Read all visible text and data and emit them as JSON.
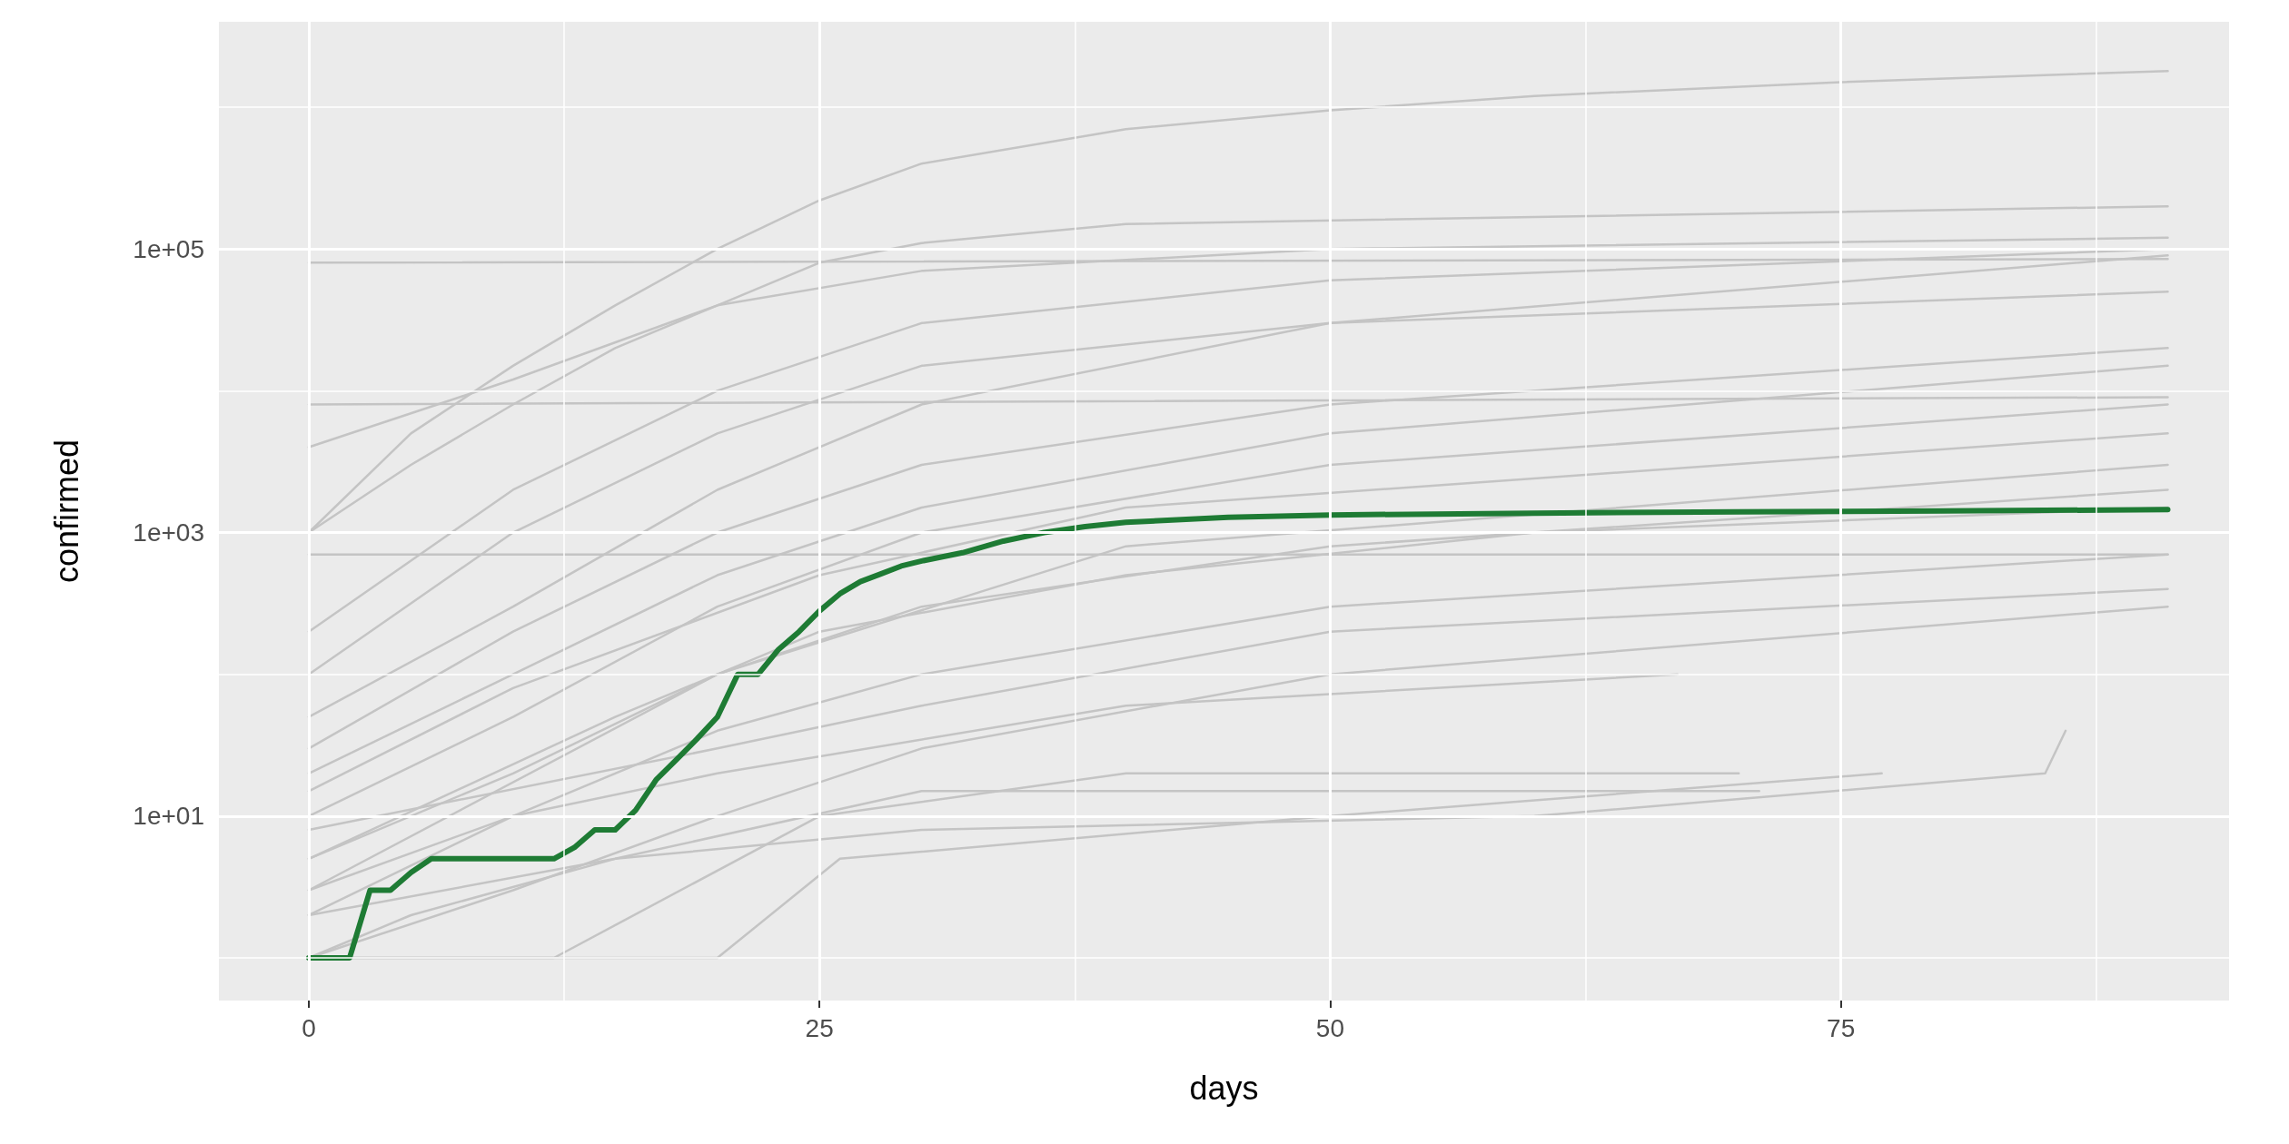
{
  "chart_data": {
    "type": "line",
    "xlabel": "days",
    "ylabel": "confirmed",
    "log": "y",
    "grid": true,
    "marker": "none",
    "line_style": "solid",
    "xlim": [
      -4.4,
      94
    ],
    "xticks": [
      0,
      {
        "value": 12.5,
        "label": null
      },
      25,
      {
        "value": 37.5,
        "label": null
      },
      50,
      {
        "value": 62.5,
        "label": null
      },
      75,
      {
        "value": 87.5,
        "label": null
      }
    ],
    "ylim": [
      0.5,
      4000000
    ],
    "yticks": [
      {
        "value": 1,
        "label": null
      },
      {
        "value": 10,
        "label": "1e+01"
      },
      {
        "value": 100,
        "label": null
      },
      {
        "value": 1000,
        "label": "1e+03"
      },
      {
        "value": 10000,
        "label": null
      },
      {
        "value": 100000,
        "label": "1e+05"
      },
      {
        "value": 1000000,
        "label": null
      }
    ],
    "series": [
      {
        "color": "#c4c4c4",
        "x": [
          0,
          5,
          10,
          15,
          20,
          25,
          30,
          40,
          50,
          60,
          75,
          91
        ],
        "values": [
          1000,
          5000,
          15000,
          40000,
          100000,
          220000,
          400000,
          700000,
          950000,
          1200000,
          1500000,
          1800000
        ]
      },
      {
        "color": "#c4c4c4",
        "x": [
          0,
          91
        ],
        "values": [
          80000,
          85000
        ]
      },
      {
        "color": "#c4c4c4",
        "x": [
          0,
          91
        ],
        "values": [
          8000,
          9000
        ]
      },
      {
        "color": "#c4c4c4",
        "x": [
          0,
          91
        ],
        "values": [
          700,
          700
        ]
      },
      {
        "color": "#c4c4c4",
        "x": [
          0,
          10,
          20,
          25,
          30,
          40,
          91
        ],
        "values": [
          4000,
          12000,
          40000,
          80000,
          110000,
          150000,
          200000
        ]
      },
      {
        "color": "#c4c4c4",
        "x": [
          0,
          5,
          10,
          15,
          20,
          30,
          50,
          91
        ],
        "values": [
          1000,
          3000,
          8000,
          20000,
          40000,
          70000,
          100000,
          120000
        ]
      },
      {
        "color": "#c4c4c4",
        "x": [
          0,
          10,
          20,
          30,
          50,
          91
        ],
        "values": [
          100,
          1000,
          5000,
          15000,
          30000,
          50000
        ]
      },
      {
        "color": "#c4c4c4",
        "x": [
          0,
          10,
          20,
          30,
          50,
          91
        ],
        "values": [
          30,
          200,
          1000,
          3000,
          8000,
          20000
        ]
      },
      {
        "color": "#c4c4c4",
        "x": [
          0,
          10,
          20,
          30,
          50,
          91
        ],
        "values": [
          10,
          50,
          300,
          1000,
          3000,
          8000
        ]
      },
      {
        "color": "#c4c4c4",
        "x": [
          0,
          10,
          20,
          30,
          50,
          91
        ],
        "values": [
          5,
          20,
          100,
          300,
          800,
          2000
        ]
      },
      {
        "color": "#c4c4c4",
        "x": [
          0,
          10,
          20,
          30,
          50,
          91
        ],
        "values": [
          2,
          10,
          40,
          100,
          300,
          700
        ]
      },
      {
        "color": "#c4c4c4",
        "x": [
          0,
          10,
          20,
          30,
          50,
          91
        ],
        "values": [
          1,
          3,
          10,
          30,
          100,
          300
        ]
      },
      {
        "color": "#c4c4c4",
        "x": [
          0,
          12,
          25,
          40,
          70
        ],
        "values": [
          1,
          1,
          10,
          20,
          20
        ]
      },
      {
        "color": "#c4c4c4",
        "x": [
          0,
          20,
          26,
          50,
          77
        ],
        "values": [
          1,
          1,
          5,
          10,
          20
        ]
      },
      {
        "color": "#c4c4c4",
        "x": [
          0,
          10,
          20,
          30,
          50,
          91
        ],
        "values": [
          50,
          300,
          2000,
          8000,
          30000,
          90000
        ]
      },
      {
        "color": "#c4c4c4",
        "x": [
          0,
          10,
          20,
          30,
          50,
          91
        ],
        "values": [
          200,
          2000,
          10000,
          30000,
          60000,
          100000
        ]
      },
      {
        "color": "#c4c4c4",
        "x": [
          0,
          15,
          25,
          40,
          60,
          91
        ],
        "values": [
          5,
          50,
          200,
          500,
          1000,
          1500
        ]
      },
      {
        "color": "#c4c4c4",
        "x": [
          0,
          10,
          20,
          40,
          67
        ],
        "values": [
          3,
          10,
          20,
          60,
          100
        ]
      },
      {
        "color": "#c4c4c4",
        "x": [
          0,
          15,
          30,
          71
        ],
        "values": [
          2,
          5,
          15,
          15
        ]
      },
      {
        "color": "#c4c4c4",
        "x": [
          0,
          10,
          20,
          30,
          50,
          91
        ],
        "values": [
          20,
          100,
          500,
          1500,
          5000,
          15000
        ]
      },
      {
        "color": "#c4c4c4",
        "x": [
          0,
          20,
          30,
          50,
          91
        ],
        "values": [
          8,
          30,
          60,
          200,
          400
        ]
      },
      {
        "color": "#c4c4c4",
        "x": [
          0,
          5,
          15,
          30,
          60,
          85,
          86
        ],
        "values": [
          1,
          2,
          5,
          8,
          10,
          20,
          40
        ]
      },
      {
        "color": "#c4c4c4",
        "x": [
          0,
          10,
          25,
          40,
          91
        ],
        "values": [
          15,
          80,
          500,
          1500,
          5000
        ]
      },
      {
        "color": "#c4c4c4",
        "x": [
          0,
          20,
          40,
          91
        ],
        "values": [
          3,
          100,
          800,
          3000
        ]
      },
      {
        "color": "#1e7b34",
        "x": [
          0,
          2,
          3,
          4,
          5,
          6,
          12,
          13,
          14,
          15,
          16,
          17,
          18,
          19,
          20,
          21,
          22,
          23,
          24,
          25,
          26,
          27,
          28,
          29,
          30,
          32,
          34,
          36,
          38,
          40,
          45,
          50,
          60,
          70,
          80,
          91
        ],
        "values": [
          1,
          1,
          3,
          3,
          4,
          5,
          5,
          6,
          8,
          8,
          11,
          18,
          25,
          35,
          50,
          100,
          100,
          150,
          200,
          280,
          370,
          450,
          510,
          580,
          630,
          720,
          870,
          1000,
          1100,
          1180,
          1280,
          1330,
          1370,
          1400,
          1420,
          1450
        ]
      }
    ]
  }
}
